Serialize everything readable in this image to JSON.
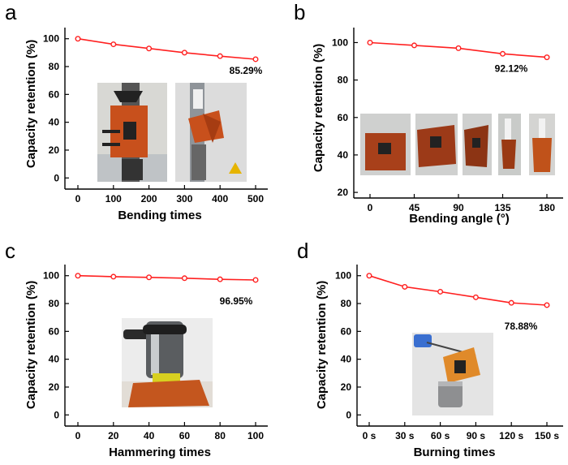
{
  "chart_data": [
    {
      "panel": "a",
      "type": "line",
      "x": [
        0,
        100,
        200,
        300,
        400,
        500
      ],
      "xticks": [
        "0",
        "100",
        "200",
        "300",
        "400",
        "500"
      ],
      "values": [
        100,
        96,
        93,
        90,
        87.5,
        85.29
      ],
      "xlabel": "Bending times",
      "ylabel": "Capacity retention (%)",
      "yticks": [
        "0",
        "20",
        "40",
        "60",
        "80",
        "100"
      ],
      "ylim": [
        -8,
        108
      ],
      "end_label": "85.29%",
      "inset": "photos of bending test setup",
      "line_color": "#ff2020"
    },
    {
      "panel": "b",
      "type": "line",
      "x": [
        0,
        45,
        90,
        135,
        180
      ],
      "xticks": [
        "0",
        "45",
        "90",
        "135",
        "180"
      ],
      "values": [
        100,
        98.5,
        97,
        94,
        92.12
      ],
      "xlabel": "Bending angle (°)",
      "ylabel": "Capacity retention (%)",
      "yticks": [
        "20",
        "40",
        "60",
        "80",
        "100"
      ],
      "ylim": [
        17,
        108
      ],
      "end_label": "92.12%",
      "inset": "photos of device at different bending angles",
      "line_color": "#ff2020"
    },
    {
      "panel": "c",
      "type": "line",
      "x": [
        0,
        20,
        40,
        60,
        80,
        100
      ],
      "xticks": [
        "0",
        "20",
        "40",
        "60",
        "80",
        "100"
      ],
      "values": [
        100,
        99.3,
        98.8,
        98.2,
        97.4,
        96.95
      ],
      "xlabel": "Hammering times",
      "ylabel": "Capacity retention (%)",
      "yticks": [
        "0",
        "20",
        "40",
        "60",
        "80",
        "100"
      ],
      "ylim": [
        -8,
        108
      ],
      "end_label": "96.95%",
      "inset": "photo of hammer on device",
      "line_color": "#ff2020"
    },
    {
      "panel": "d",
      "type": "line",
      "x": [
        0,
        30,
        60,
        90,
        120,
        150
      ],
      "xticks": [
        "0 s",
        "30 s",
        "60 s",
        "90 s",
        "120 s",
        "150 s"
      ],
      "values": [
        100,
        92,
        88.5,
        84.5,
        80.5,
        78.88
      ],
      "xlabel": "Burning times",
      "ylabel": "Capacity retention (%)",
      "yticks": [
        "0",
        "20",
        "40",
        "60",
        "80",
        "100"
      ],
      "ylim": [
        -8,
        108
      ],
      "end_label": "78.88%",
      "inset": "photo of burning test",
      "line_color": "#ff2020"
    }
  ]
}
